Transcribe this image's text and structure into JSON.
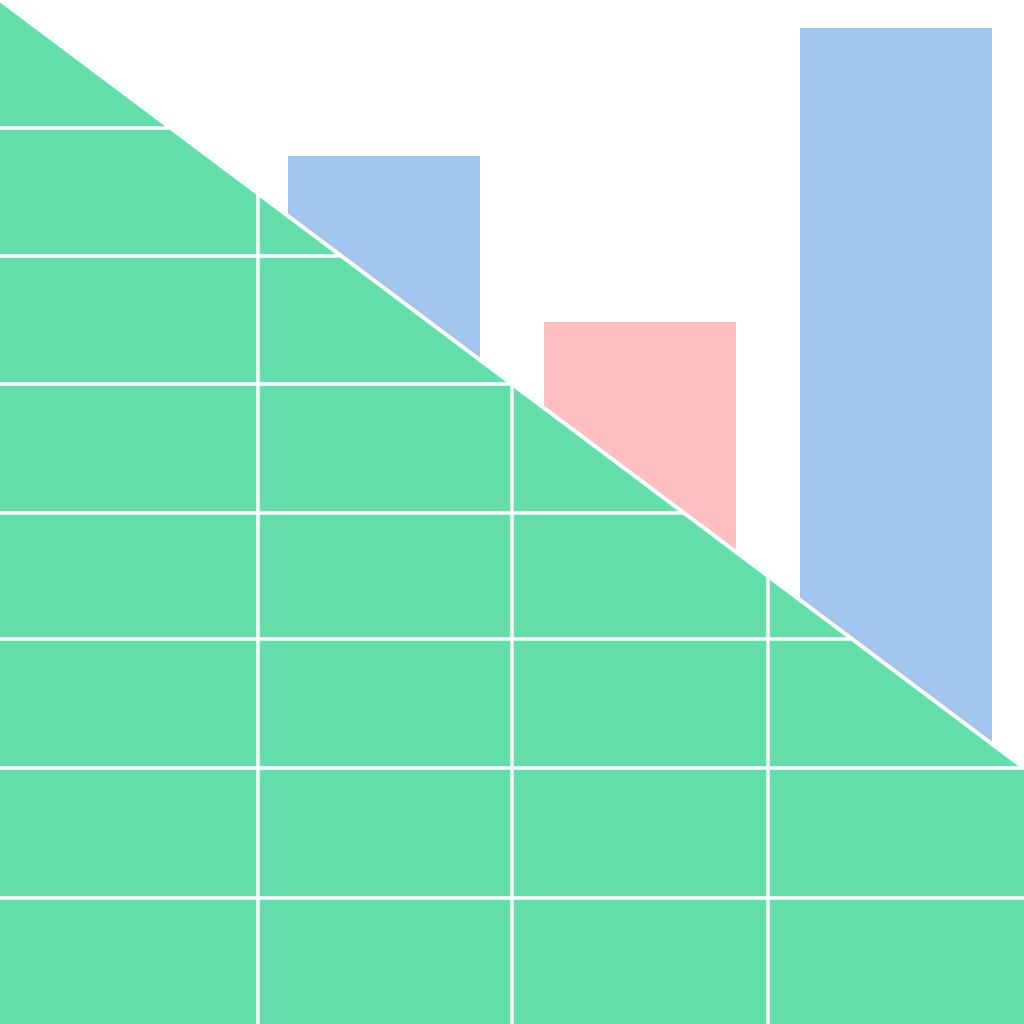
{
  "illustration": {
    "colors": {
      "background": "#ffffff",
      "grid_fill": "#64DDAB",
      "grid_lines": "#ffffff",
      "bar_primary": "#A2C5EF",
      "bar_secondary": "#FFBFC1"
    },
    "bars": [
      {
        "color_key": "bar_primary"
      },
      {
        "color_key": "bar_secondary"
      },
      {
        "color_key": "bar_primary"
      }
    ]
  }
}
